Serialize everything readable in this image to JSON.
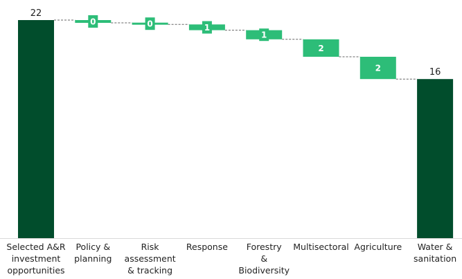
{
  "chart_data": {
    "type": "bar",
    "subtype": "waterfall",
    "title": "",
    "xlabel": "",
    "ylabel": "",
    "ylim": [
      0,
      22
    ],
    "grid": false,
    "legend": "none",
    "categories": [
      [
        "Selected A&R",
        "investment",
        "opportunities"
      ],
      [
        "Policy &",
        "planning"
      ],
      [
        "Risk",
        "assessment",
        "& tracking"
      ],
      [
        "Response"
      ],
      [
        "Forestry",
        "&",
        "Biodiversity"
      ],
      [
        "Multisectoral"
      ],
      [
        "Agriculture"
      ],
      [
        "Water &",
        "sanitation"
      ]
    ],
    "bars": [
      {
        "kind": "total",
        "start": 0,
        "end": 22,
        "label": "22"
      },
      {
        "kind": "delta",
        "start": 22,
        "end": 21.72,
        "label": "0"
      },
      {
        "kind": "delta",
        "start": 21.72,
        "end": 21.56,
        "label": "0"
      },
      {
        "kind": "delta",
        "start": 21.56,
        "end": 20.98,
        "label": "1"
      },
      {
        "kind": "delta",
        "start": 20.98,
        "end": 20.06,
        "label": "1"
      },
      {
        "kind": "delta",
        "start": 20.06,
        "end": 18.3,
        "label": "2"
      },
      {
        "kind": "delta",
        "start": 18.3,
        "end": 16.05,
        "label": "2"
      },
      {
        "kind": "total",
        "start": 0,
        "end": 16.05,
        "label": "16"
      }
    ],
    "colors": {
      "total": "#014d2c",
      "delta": "#2dbd78",
      "connector": "#666666"
    }
  }
}
